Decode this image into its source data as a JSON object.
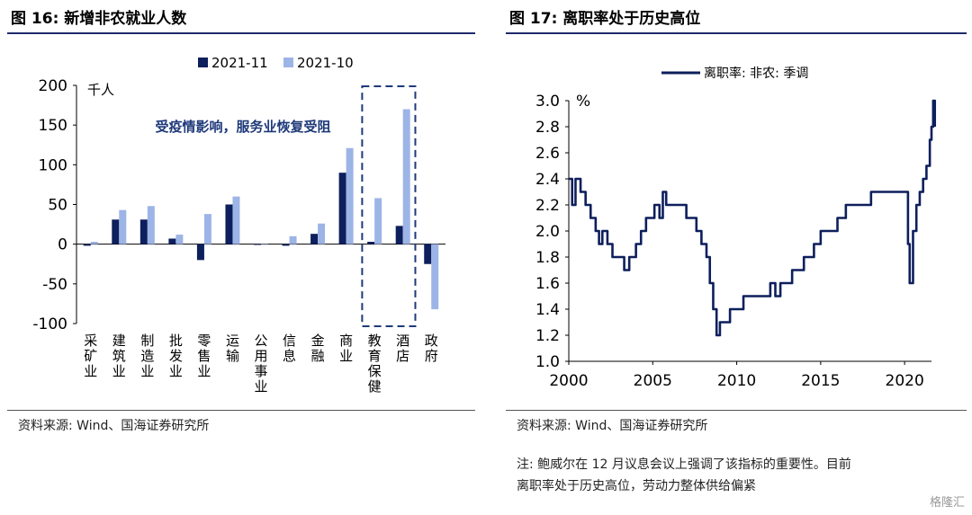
{
  "left": {
    "title": "图 16:  新增非农就业人数",
    "source": "资料来源:  Wind、国海证券研究所",
    "chart_data": {
      "type": "bar",
      "unit_label": "千人",
      "ylim": [
        -100,
        200
      ],
      "yticks": [
        -100,
        -50,
        0,
        50,
        100,
        150,
        200
      ],
      "categories": [
        "采矿业",
        "建筑业",
        "制造业",
        "批发业",
        "零售业",
        "运输",
        "公用事业",
        "信息",
        "金融",
        "商业",
        "教育保健",
        "酒店",
        "政府"
      ],
      "series": [
        {
          "name": "2021-11",
          "color": "#0d1f5c",
          "values": [
            -2,
            31,
            31,
            7,
            -20,
            50,
            0,
            -2,
            13,
            90,
            3,
            23,
            -25
          ]
        },
        {
          "name": "2021-10",
          "color": "#9db4e6",
          "values": [
            3,
            43,
            48,
            12,
            38,
            60,
            0,
            10,
            26,
            121,
            58,
            170,
            -82
          ]
        }
      ],
      "legend": "top",
      "annotation": "受疫情影响，服务业恢复受阻",
      "highlight_categories": [
        "教育保健",
        "酒店"
      ]
    }
  },
  "right": {
    "title": "图 17:  离职率处于历史高位",
    "source": "资料来源:  Wind、国海证券研究所",
    "note_line1": "注:  鲍威尔在 12 月议息会议上强调了该指标的重要性。目前",
    "note_line2": "离职率处于历史高位，劳动力整体供给偏紧",
    "chart_data": {
      "type": "line",
      "series_name": "离职率: 非农: 季调",
      "unit_label": "%",
      "color": "#0d1f5c",
      "xlim": [
        2000,
        2021.6
      ],
      "ylim": [
        1.0,
        3.0
      ],
      "xticks": [
        2000,
        2005,
        2010,
        2015,
        2020
      ],
      "yticks": [
        1.0,
        1.2,
        1.4,
        1.6,
        1.8,
        2.0,
        2.2,
        2.4,
        2.6,
        2.8,
        3.0
      ],
      "points": [
        [
          2000.0,
          2.4
        ],
        [
          2000.2,
          2.2
        ],
        [
          2000.4,
          2.4
        ],
        [
          2000.7,
          2.3
        ],
        [
          2001.0,
          2.2
        ],
        [
          2001.3,
          2.1
        ],
        [
          2001.6,
          2.0
        ],
        [
          2001.8,
          1.9
        ],
        [
          2002.0,
          2.0
        ],
        [
          2002.3,
          1.9
        ],
        [
          2002.6,
          1.8
        ],
        [
          2003.0,
          1.8
        ],
        [
          2003.3,
          1.7
        ],
        [
          2003.6,
          1.8
        ],
        [
          2004.0,
          1.9
        ],
        [
          2004.3,
          2.0
        ],
        [
          2004.6,
          2.1
        ],
        [
          2004.9,
          2.1
        ],
        [
          2005.1,
          2.2
        ],
        [
          2005.4,
          2.1
        ],
        [
          2005.6,
          2.3
        ],
        [
          2005.8,
          2.2
        ],
        [
          2006.2,
          2.2
        ],
        [
          2006.6,
          2.2
        ],
        [
          2007.0,
          2.1
        ],
        [
          2007.3,
          2.1
        ],
        [
          2007.6,
          2.0
        ],
        [
          2007.9,
          1.9
        ],
        [
          2008.2,
          1.8
        ],
        [
          2008.4,
          1.6
        ],
        [
          2008.6,
          1.4
        ],
        [
          2008.8,
          1.2
        ],
        [
          2009.0,
          1.3
        ],
        [
          2009.3,
          1.3
        ],
        [
          2009.6,
          1.4
        ],
        [
          2010.0,
          1.4
        ],
        [
          2010.4,
          1.5
        ],
        [
          2010.8,
          1.5
        ],
        [
          2011.2,
          1.5
        ],
        [
          2011.6,
          1.5
        ],
        [
          2012.0,
          1.6
        ],
        [
          2012.3,
          1.5
        ],
        [
          2012.6,
          1.6
        ],
        [
          2013.0,
          1.6
        ],
        [
          2013.3,
          1.7
        ],
        [
          2013.6,
          1.7
        ],
        [
          2014.0,
          1.8
        ],
        [
          2014.3,
          1.8
        ],
        [
          2014.6,
          1.9
        ],
        [
          2015.0,
          2.0
        ],
        [
          2015.5,
          2.0
        ],
        [
          2016.0,
          2.1
        ],
        [
          2016.5,
          2.2
        ],
        [
          2017.0,
          2.2
        ],
        [
          2017.5,
          2.2
        ],
        [
          2018.0,
          2.3
        ],
        [
          2018.5,
          2.3
        ],
        [
          2019.0,
          2.3
        ],
        [
          2019.3,
          2.3
        ],
        [
          2019.6,
          2.3
        ],
        [
          2019.9,
          2.3
        ],
        [
          2020.2,
          1.9
        ],
        [
          2020.3,
          1.6
        ],
        [
          2020.5,
          2.0
        ],
        [
          2020.7,
          2.2
        ],
        [
          2020.9,
          2.3
        ],
        [
          2021.1,
          2.4
        ],
        [
          2021.3,
          2.5
        ],
        [
          2021.5,
          2.7
        ],
        [
          2021.6,
          2.8
        ],
        [
          2021.7,
          3.0
        ],
        [
          2021.8,
          2.8
        ]
      ]
    }
  },
  "watermark": "格隆汇"
}
